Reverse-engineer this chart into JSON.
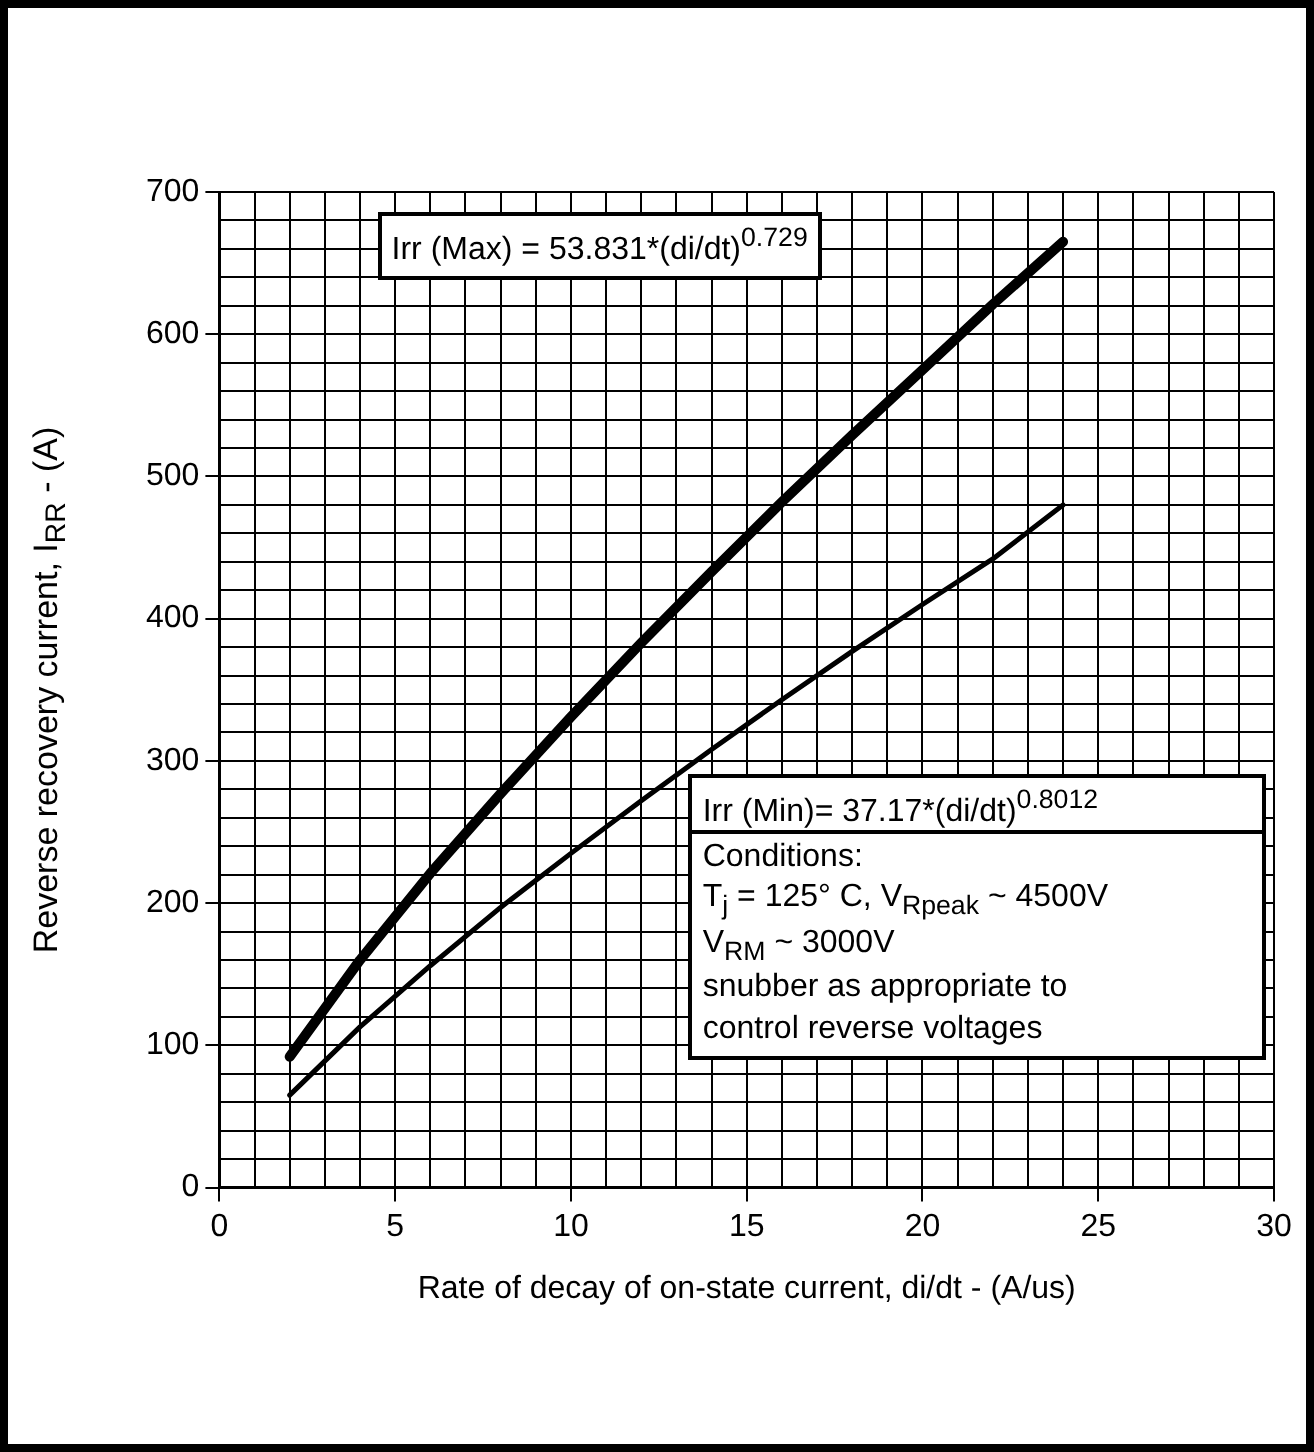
{
  "chart_data": {
    "type": "line",
    "xlabel": "Rate of decay of on-state current, di/dt - (A/us)",
    "ylabel": "Reverse recovery current, I$_{RR}$ - (A)",
    "xlim": [
      0,
      30
    ],
    "ylim": [
      0,
      700
    ],
    "xticks": [
      0,
      {
        "value": 1,
        "label": null
      },
      {
        "value": 2,
        "label": null
      },
      {
        "value": 3,
        "label": null
      },
      {
        "value": 4,
        "label": null
      },
      5,
      {
        "value": 6,
        "label": null
      },
      {
        "value": 7,
        "label": null
      },
      {
        "value": 8,
        "label": null
      },
      {
        "value": 9,
        "label": null
      },
      10,
      {
        "value": 11,
        "label": null
      },
      {
        "value": 12,
        "label": null
      },
      {
        "value": 13,
        "label": null
      },
      {
        "value": 14,
        "label": null
      },
      15,
      {
        "value": 16,
        "label": null
      },
      {
        "value": 17,
        "label": null
      },
      {
        "value": 18,
        "label": null
      },
      {
        "value": 19,
        "label": null
      },
      20,
      {
        "value": 21,
        "label": null
      },
      {
        "value": 22,
        "label": null
      },
      {
        "value": 23,
        "label": null
      },
      {
        "value": 24,
        "label": null
      },
      25,
      {
        "value": 26,
        "label": null
      },
      {
        "value": 27,
        "label": null
      },
      {
        "value": 28,
        "label": null
      },
      {
        "value": 29,
        "label": null
      },
      30
    ],
    "yticks": [
      0,
      {
        "value": 20,
        "label": null
      },
      {
        "value": 40,
        "label": null
      },
      {
        "value": 60,
        "label": null
      },
      {
        "value": 80,
        "label": null
      },
      100,
      {
        "value": 120,
        "label": null
      },
      {
        "value": 140,
        "label": null
      },
      {
        "value": 160,
        "label": null
      },
      {
        "value": 180,
        "label": null
      },
      200,
      {
        "value": 220,
        "label": null
      },
      {
        "value": 240,
        "label": null
      },
      {
        "value": 260,
        "label": null
      },
      {
        "value": 280,
        "label": null
      },
      300,
      {
        "value": 320,
        "label": null
      },
      {
        "value": 340,
        "label": null
      },
      {
        "value": 360,
        "label": null
      },
      {
        "value": 380,
        "label": null
      },
      400,
      {
        "value": 420,
        "label": null
      },
      {
        "value": 440,
        "label": null
      },
      {
        "value": 460,
        "label": null
      },
      {
        "value": 480,
        "label": null
      },
      500,
      {
        "value": 520,
        "label": null
      },
      {
        "value": 540,
        "label": null
      },
      {
        "value": 560,
        "label": null
      },
      {
        "value": 580,
        "label": null
      },
      600,
      {
        "value": 620,
        "label": null
      },
      {
        "value": 640,
        "label": null
      },
      {
        "value": 660,
        "label": null
      },
      {
        "value": 680,
        "label": null
      },
      700
    ],
    "grid": true,
    "legend": false,
    "marker": "none",
    "line_style": "solid",
    "series": [
      {
        "color": "#000000",
        "x": [
          2,
          4,
          6,
          8,
          10,
          12,
          14,
          16,
          18,
          20,
          22,
          24
        ],
        "values": [
          92,
          160,
          221,
          277,
          331,
          383,
          433,
          482,
          529,
          575,
          621,
          665
        ]
      },
      {
        "color": "#000000",
        "x": [
          2,
          4,
          6,
          8,
          10,
          12,
          14,
          16,
          18,
          20,
          22,
          24
        ],
        "values": [
          65,
          113,
          156,
          197,
          235,
          272,
          308,
          343,
          377,
          410,
          442,
          480
        ]
      }
    ],
    "annotations": [
      "Irr (Max) = 53.831*(di/dt)$^{0.729}$",
      "Irr (Min)= 37.17*(di/dt)$^{0.8012}$",
      "Conditions:\nT$_{j}$ = 125° C, V$_{Rpeak}$ ~ 4500V\nV$_{RM}$ ~ 3000V\nsnubber as appropriate to\ncontrol reverse voltages"
    ]
  }
}
